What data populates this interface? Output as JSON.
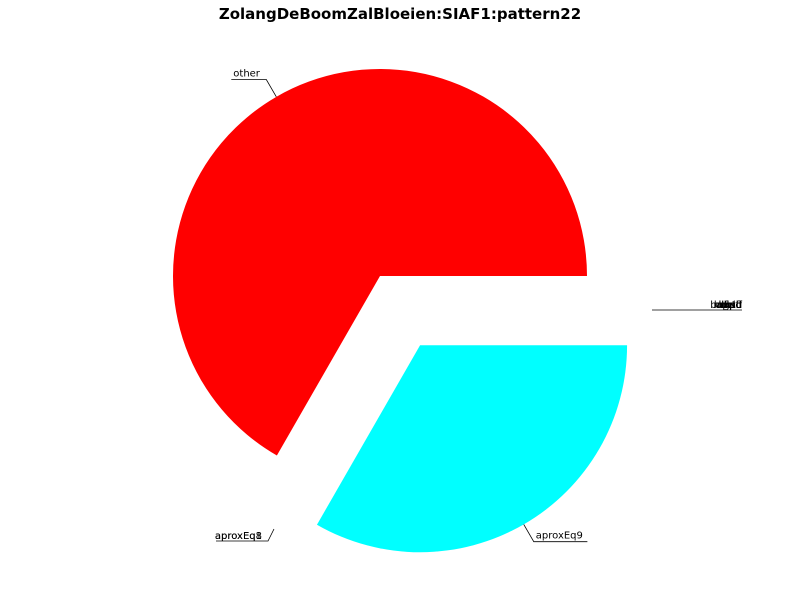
{
  "chart_data": {
    "type": "pie",
    "title": "ZolangDeBoomZalBloeien:SIAF1:pattern22",
    "slices": [
      {
        "label": "other",
        "value": 66.7,
        "color": "#ff0000",
        "exploded": false
      },
      {
        "label": "aproxEq9",
        "value": 33.3,
        "color": "#00ffff",
        "exploded": true
      }
    ],
    "zero_slice_labels_right": [
      "lndpd",
      "ltsfl",
      "mgalf",
      "ltrpd",
      "bndpd",
      "aprld",
      "lnrtd",
      "ulfwd"
    ],
    "zero_slice_labels_left": [
      "aproxEq8",
      "aproxEq1"
    ]
  }
}
